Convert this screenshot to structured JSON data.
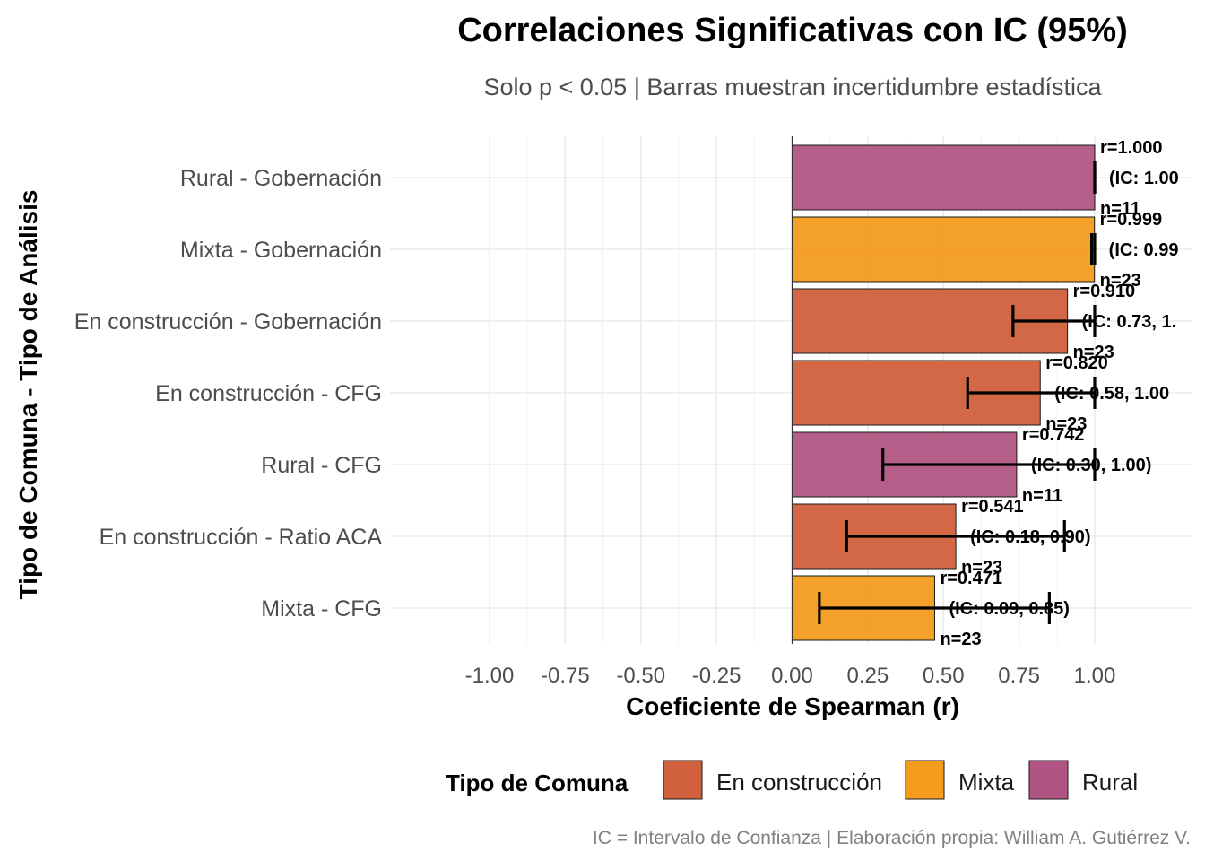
{
  "chart_data": {
    "type": "bar",
    "orientation": "horizontal",
    "title": "Correlaciones Significativas con IC (95%)",
    "subtitle": "Solo p < 0.05 | Barras muestran incertidumbre estadística",
    "xlabel": "Coeficiente de Spearman (r)",
    "ylabel": "Tipo de Comuna - Tipo de Análisis",
    "caption": "IC = Intervalo de Confianza | Elaboración propia: William A. Gutiérrez V.",
    "xlim": [
      -1,
      1
    ],
    "x_ticks": [
      "-1.00",
      "-0.75",
      "-0.50",
      "-0.25",
      "0.00",
      "0.25",
      "0.50",
      "0.75",
      "1.00"
    ],
    "grid": true,
    "legend": {
      "title": "Tipo de Comuna",
      "position": "bottom",
      "items": [
        {
          "label": "En construcción",
          "color": "#D1603D"
        },
        {
          "label": "Mixta",
          "color": "#F39C1D"
        },
        {
          "label": "Rural",
          "color": "#B05583"
        }
      ]
    },
    "bars": [
      {
        "category": "Rural - Gobernación",
        "group": "Rural",
        "value": 1.0,
        "ci": [
          1.0,
          1.0
        ],
        "r_label": "r=1.000",
        "ci_label": "(IC: 1.00",
        "n_label": "n=11"
      },
      {
        "category": "Mixta - Gobernación",
        "group": "Mixta",
        "value": 0.999,
        "ci": [
          0.99,
          1.0
        ],
        "r_label": "r=0.999",
        "ci_label": "(IC: 0.99",
        "n_label": "n=23"
      },
      {
        "category": "En construcción - Gobernación",
        "group": "En construcción",
        "value": 0.91,
        "ci": [
          0.73,
          1.0
        ],
        "r_label": "r=0.910",
        "ci_label": "(IC: 0.73, 1.",
        "n_label": "n=23"
      },
      {
        "category": "En construcción - CFG",
        "group": "En construcción",
        "value": 0.82,
        "ci": [
          0.58,
          1.0
        ],
        "r_label": "r=0.820",
        "ci_label": "(IC: 0.58, 1.00",
        "n_label": "n=23"
      },
      {
        "category": "Rural - CFG",
        "group": "Rural",
        "value": 0.742,
        "ci": [
          0.3,
          1.0
        ],
        "r_label": "r=0.742",
        "ci_label": "(IC: 0.30, 1.00)",
        "n_label": "n=11"
      },
      {
        "category": "En construcción - Ratio ACA",
        "group": "En construcción",
        "value": 0.541,
        "ci": [
          0.18,
          0.9
        ],
        "r_label": "r=0.541",
        "ci_label": "(IC: 0.18, 0.90)",
        "n_label": "n=23"
      },
      {
        "category": "Mixta - CFG",
        "group": "Mixta",
        "value": 0.471,
        "ci": [
          0.09,
          0.85
        ],
        "r_label": "r=0.471",
        "ci_label": "(IC: 0.09, 0.85)",
        "n_label": "n=23"
      }
    ]
  }
}
